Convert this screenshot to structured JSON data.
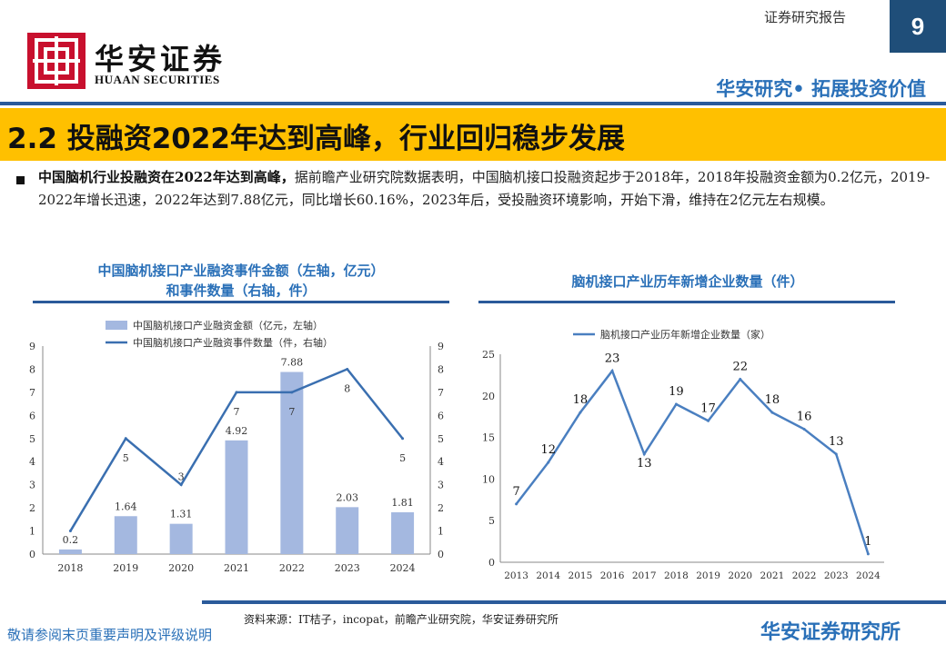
{
  "header": {
    "logo_cn": "华安证券",
    "logo_en": "HUAAN SECURITIES",
    "report_type": "证券研究报告",
    "page_number": "9",
    "slogan": "华安研究• 拓展投资价值",
    "brand_color": "#c8102e",
    "accent_color": "#1f4e79"
  },
  "section": {
    "title": "2.2 投融资2022年达到高峰，行业回归稳步发展",
    "highlight_color": "#ffc000"
  },
  "paragraph": {
    "lead": "中国脑机行业投融资在2022年达到高峰，",
    "body": "据前瞻产业研究院数据表明，中国脑机接口投融资起步于2018年，2018年投融资金额为0.2亿元，2019-2022年增长迅速，2022年达到7.88亿元，同比增长60.16%，2023年后，受投融资环境影响，开始下滑，维持在2亿元左右规模。"
  },
  "chart_data": [
    {
      "type": "bar",
      "title": "中国脑机接口产业融资事件金额（左轴，亿元）和事件数量（右轴，件）",
      "title_lines": [
        "中国脑机接口产业融资事件金额（左轴，亿元）",
        "和事件数量（右轴，件）"
      ],
      "categories": [
        "2018",
        "2019",
        "2020",
        "2021",
        "2022",
        "2023",
        "2024"
      ],
      "series": [
        {
          "name": "中国脑机接口产业融资金额（亿元，左轴）",
          "type": "bar",
          "axis": "left",
          "values": [
            0.2,
            1.64,
            1.31,
            4.92,
            7.88,
            2.03,
            1.81
          ],
          "color": "#a4b8e0"
        },
        {
          "name": "中国脑机接口产业融资事件数量（件，右轴）",
          "type": "line",
          "axis": "right",
          "values": [
            1,
            5,
            3,
            7,
            7,
            8,
            5
          ],
          "color": "#3a6fb0",
          "labels": [
            null,
            "5",
            "3",
            "7",
            "7",
            "8",
            "5"
          ]
        }
      ],
      "ylim_left": [
        0,
        9
      ],
      "ylim_right": [
        0,
        9
      ],
      "yticks": [
        "0",
        "1",
        "2",
        "3",
        "4",
        "5",
        "6",
        "7",
        "8",
        "9"
      ],
      "grid": false,
      "legend_position": "top"
    },
    {
      "type": "line",
      "title": "脑机接口产业历年新增企业数量（件）",
      "x": [
        "2013",
        "2014",
        "2015",
        "2016",
        "2017",
        "2018",
        "2019",
        "2020",
        "2021",
        "2022",
        "2023",
        "2024"
      ],
      "series": [
        {
          "name": "脑机接口产业历年新增企业数量（家）",
          "values": [
            7,
            12,
            18,
            23,
            13,
            19,
            17,
            22,
            18,
            16,
            13,
            1
          ],
          "color": "#4a7fc0"
        }
      ],
      "ylim": [
        0,
        25
      ],
      "yticks": [
        "0",
        "5",
        "10",
        "15",
        "20",
        "25"
      ],
      "grid": false,
      "legend_position": "top"
    }
  ],
  "footer": {
    "source": "资料来源：IT桔子，incopat，前瞻产业研究院，华安证券研究所",
    "disclaimer": "敬请参阅末页重要声明及评级说明",
    "brand": "华安证券研究所"
  }
}
